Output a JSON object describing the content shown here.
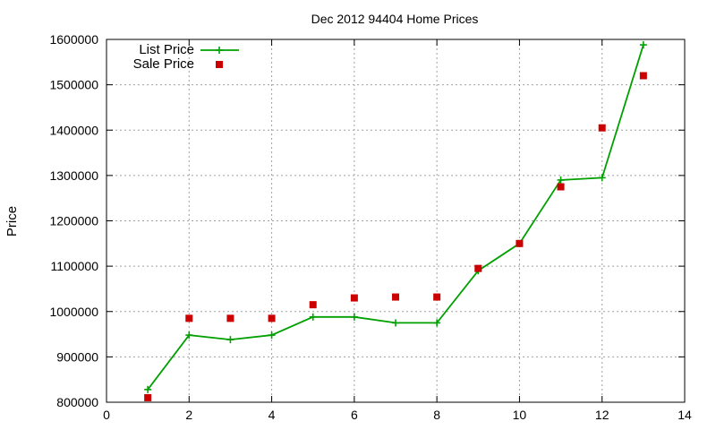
{
  "chart_data": {
    "type": "line",
    "title": "Dec 2012 94404 Home Prices",
    "xlabel": "",
    "ylabel": "Price",
    "xlim": [
      0,
      14
    ],
    "ylim": [
      800000,
      1600000
    ],
    "x_ticks": [
      0,
      2,
      4,
      6,
      8,
      10,
      12,
      14
    ],
    "y_ticks": [
      800000,
      900000,
      1000000,
      1100000,
      1200000,
      1300000,
      1400000,
      1500000,
      1600000
    ],
    "grid": true,
    "legend_position": "top-left",
    "series": [
      {
        "name": "List Price",
        "style": "line+plus",
        "color": "#00a000",
        "x": [
          1,
          2,
          3,
          4,
          5,
          6,
          7,
          8,
          9,
          10,
          11,
          12,
          13
        ],
        "y": [
          828000,
          948000,
          938000,
          948000,
          988000,
          988000,
          975000,
          975000,
          1090000,
          1150000,
          1290000,
          1295000,
          1588000
        ]
      },
      {
        "name": "Sale Price",
        "style": "square",
        "color": "#cc0000",
        "x": [
          1,
          2,
          3,
          4,
          5,
          6,
          7,
          8,
          9,
          10,
          11,
          12,
          13
        ],
        "y": [
          810000,
          985000,
          985000,
          985000,
          1015000,
          1030000,
          1032000,
          1032000,
          1095000,
          1150000,
          1275000,
          1405000,
          1520000
        ]
      }
    ]
  }
}
